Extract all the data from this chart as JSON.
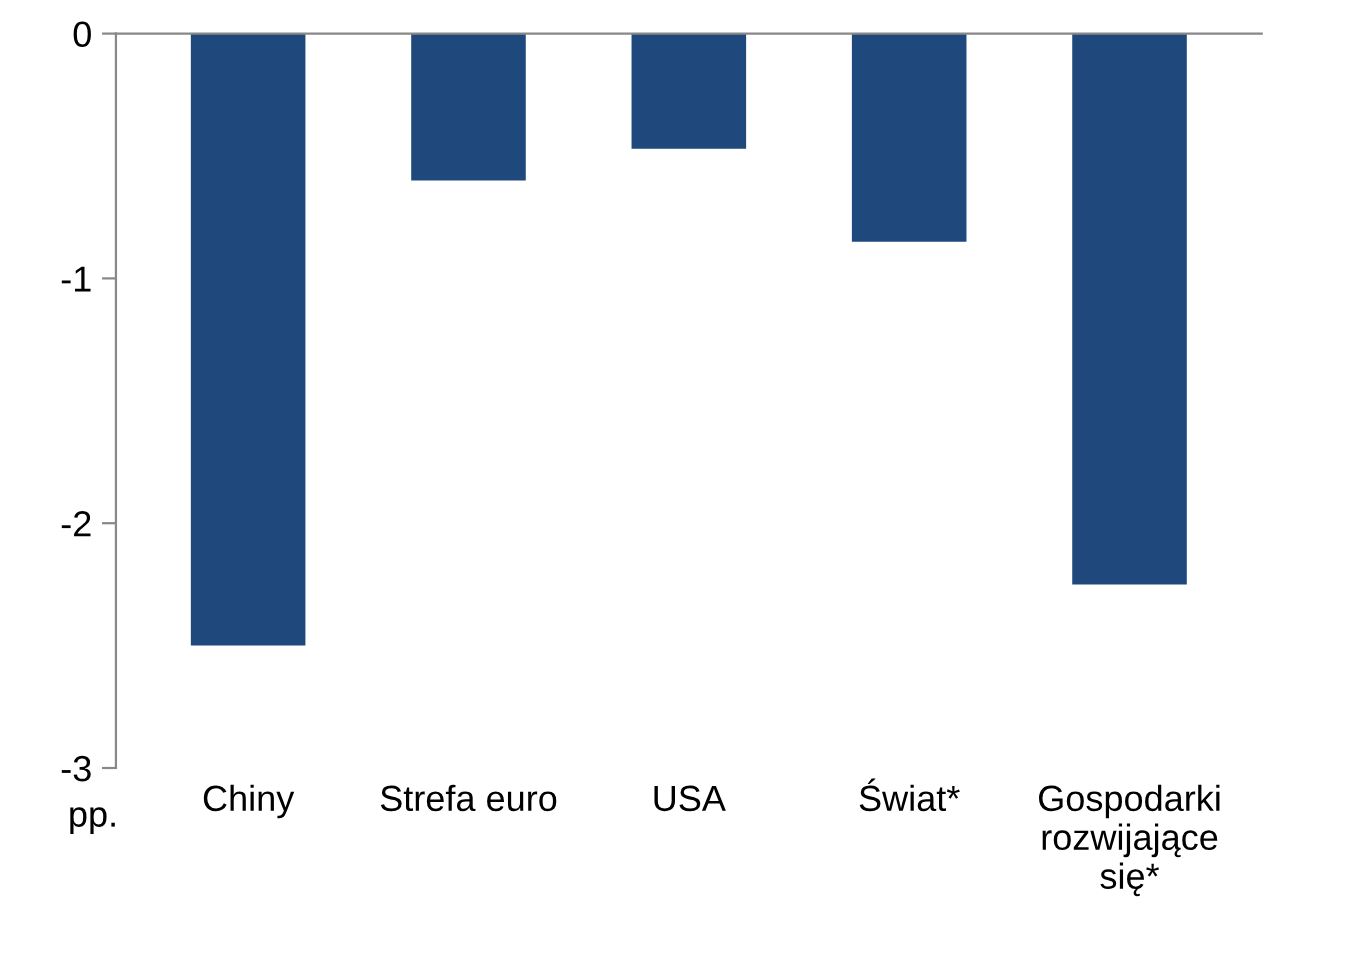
{
  "chart_data": {
    "type": "bar",
    "categories": [
      "Chiny",
      "Strefa euro",
      "USA",
      "Świat*",
      "Gospodarki\nrozwijające\nsię*"
    ],
    "values": [
      -2.5,
      -0.6,
      -0.47,
      -0.85,
      -2.25
    ],
    "color": "#1f497d",
    "ylabel": "pp.",
    "ylim": [
      -3,
      0
    ],
    "yticks": [
      -3,
      -2,
      -1,
      0
    ],
    "grid": false,
    "legend": false
  }
}
